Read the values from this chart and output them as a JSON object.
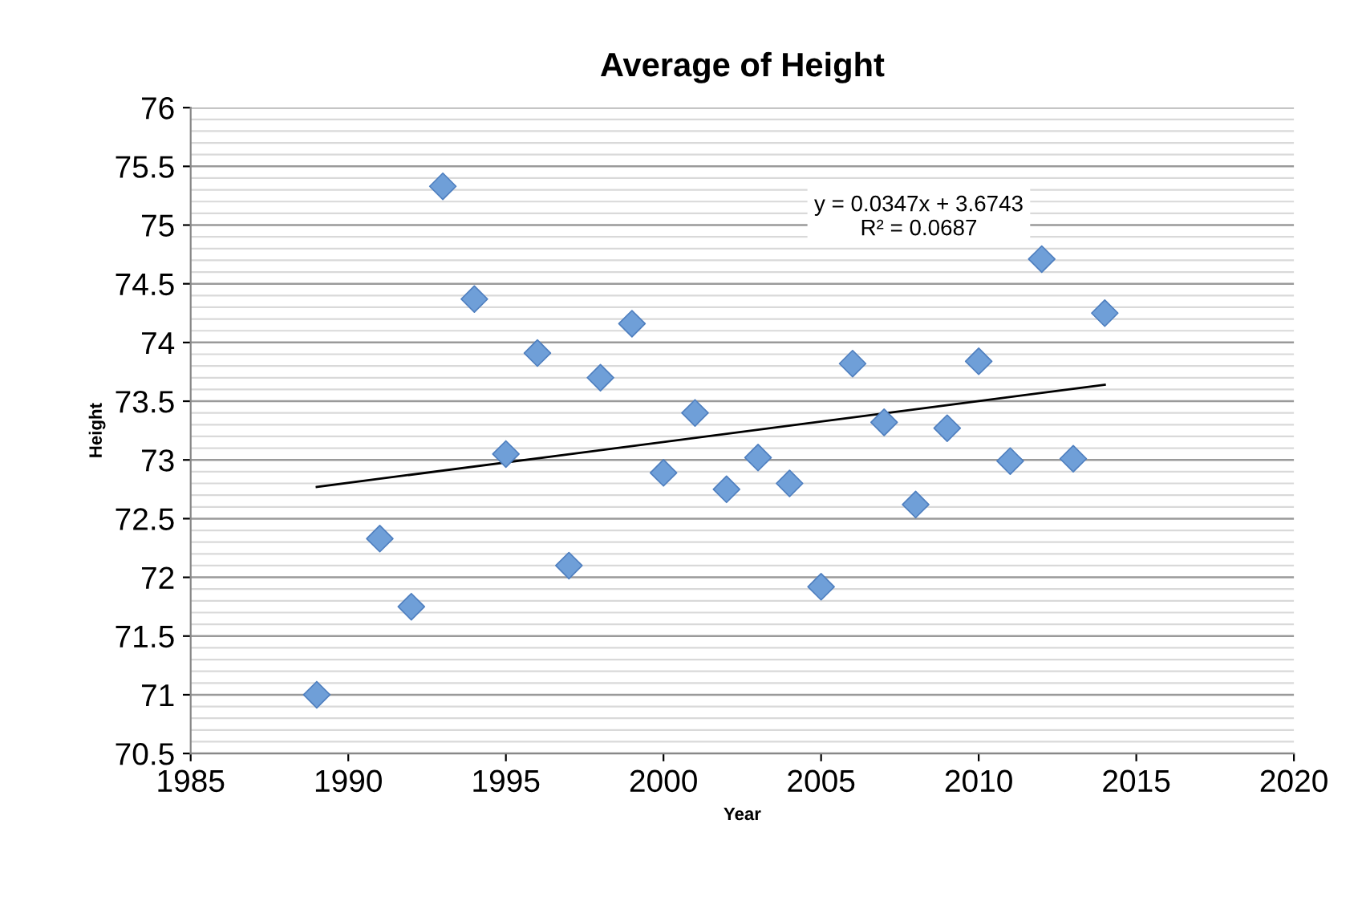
{
  "chart_data": {
    "type": "scatter",
    "title": "Average of Height",
    "xlabel": "Year",
    "ylabel": "Height",
    "xlim": [
      1985,
      2020
    ],
    "xticks": [
      1985,
      1990,
      1995,
      2000,
      2005,
      2010,
      2015,
      2020
    ],
    "ylim": [
      70.5,
      76
    ],
    "yticks": [
      70.5,
      71,
      71.5,
      72,
      72.5,
      73,
      73.5,
      74,
      74.5,
      75,
      75.5,
      76
    ],
    "grid": "y",
    "legend": false,
    "series": [
      {
        "marker": "diamond",
        "color": "#6f9fd8",
        "x": [
          1989,
          1991,
          1992,
          1993,
          1994,
          1995,
          1996,
          1997,
          1998,
          1999,
          2000,
          2001,
          2002,
          2003,
          2004,
          2005,
          2006,
          2007,
          2008,
          2009,
          2010,
          2011,
          2012,
          2013,
          2014
        ],
        "values": [
          71.0,
          72.33,
          71.75,
          75.33,
          74.37,
          73.05,
          73.91,
          72.1,
          73.7,
          74.16,
          72.89,
          73.4,
          72.75,
          73.02,
          72.8,
          71.92,
          73.82,
          73.32,
          72.62,
          73.27,
          73.84,
          72.99,
          74.71,
          73.01,
          74.25
        ]
      },
      {
        "type": "line",
        "color": "#000000",
        "x": [
          1989,
          2014
        ],
        "values": [
          72.77,
          73.64
        ]
      }
    ],
    "annotations": [
      "y = 0.0347x + 3.6743\nR² = 0.0687"
    ]
  }
}
